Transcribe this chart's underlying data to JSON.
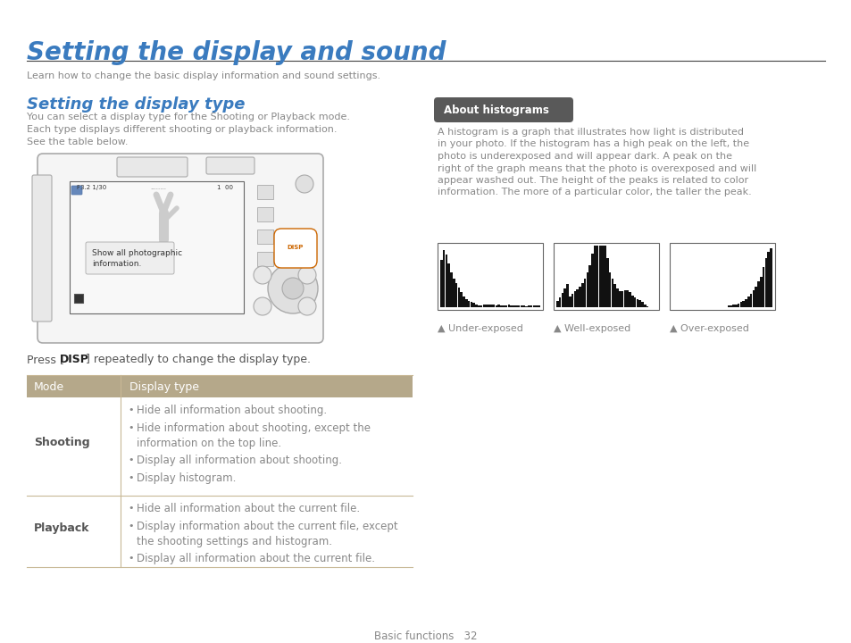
{
  "main_title": "Setting the display and sound",
  "subtitle": "Learn how to change the basic display information and sound settings.",
  "section1_title": "Setting the display type",
  "section1_body_lines": [
    "You can select a display type for the Shooting or Playback mode.",
    "Each type displays different shooting or playback information.",
    "See the table below."
  ],
  "disp_press_plain": "Press [",
  "disp_press_bold": "DISP",
  "disp_press_end": "] repeatedly to change the display type.",
  "table_header": [
    "Mode",
    "Display type"
  ],
  "table_header_bg": "#b5a88a",
  "table_header_text": "#ffffff",
  "shooting_items": [
    "Hide all information about shooting.",
    "Hide information about shooting, except the\ninformation on the top line.",
    "Display all information about shooting.",
    "Display histogram."
  ],
  "playback_items": [
    "Hide all information about the current file.",
    "Display information about the current file, except\nthe shooting settings and histogram.",
    "Display all information about the current file."
  ],
  "section2_title": "About histograms",
  "section2_title_bg": "#595959",
  "section2_body_lines": [
    "A histogram is a graph that illustrates how light is distributed",
    "in your photo. If the histogram has a high peak on the left, the",
    "photo is underexposed and will appear dark. A peak on the",
    "right of the graph means that the photo is overexposed and will",
    "appear washed out. The height of the peaks is related to color",
    "information. The more of a particular color, the taller the peak."
  ],
  "histogram_labels": [
    "▲ Under-exposed",
    "▲ Well-exposed",
    "▲ Over-exposed"
  ],
  "footer": "Basic functions   32",
  "title_color": "#3a7bbf",
  "section_title_color": "#3a7bbf",
  "body_color": "#888888",
  "table_text_color": "#888888",
  "table_mode_color": "#555555",
  "table_divider_color": "#c8b896",
  "bg_color": "#ffffff"
}
